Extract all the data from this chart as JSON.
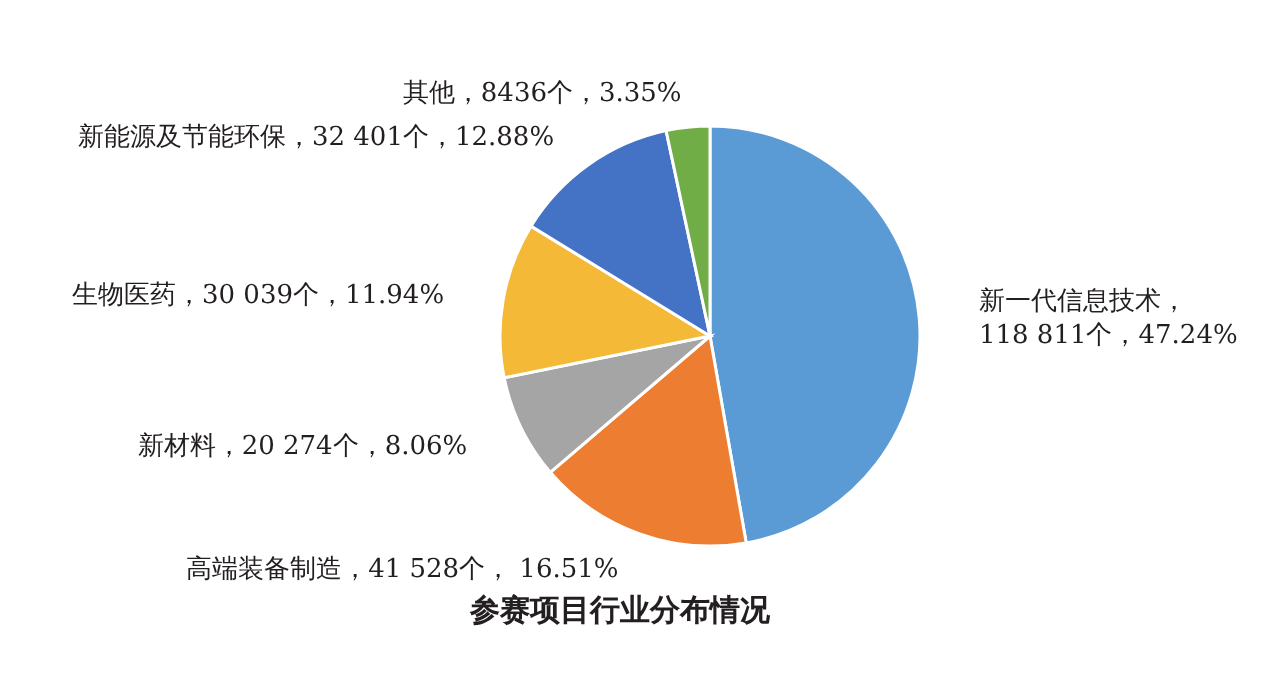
{
  "chart_data": {
    "type": "pie",
    "title": "参赛项目行业分布情况",
    "categories": [
      "新一代信息技术",
      "高端装备制造",
      "新材料",
      "生物医药",
      "新能源及节能环保",
      "其他"
    ],
    "values": [
      118811,
      41528,
      20274,
      30039,
      32401,
      8436
    ],
    "value_labels": [
      "，118 811个，47.24%",
      "，41 528个， 16.51%",
      "，20 274个，8.06%",
      "，30 039个，11.94%",
      "，32 401个，12.88%",
      "，8436个，3.35%"
    ],
    "colors": [
      "#5b9bd5",
      "#ed7d31",
      "#a5a5a5",
      "#f4b937",
      "#4472c4",
      "#70ad47"
    ]
  }
}
